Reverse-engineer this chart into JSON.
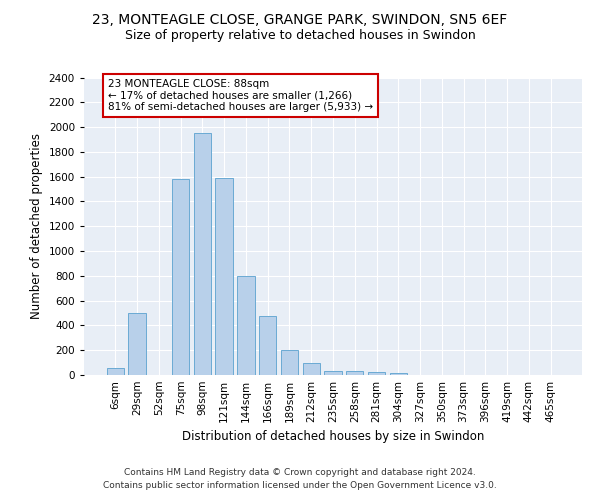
{
  "title_line1": "23, MONTEAGLE CLOSE, GRANGE PARK, SWINDON, SN5 6EF",
  "title_line2": "Size of property relative to detached houses in Swindon",
  "xlabel": "Distribution of detached houses by size in Swindon",
  "ylabel": "Number of detached properties",
  "footer_line1": "Contains HM Land Registry data © Crown copyright and database right 2024.",
  "footer_line2": "Contains public sector information licensed under the Open Government Licence v3.0.",
  "bar_labels": [
    "6sqm",
    "29sqm",
    "52sqm",
    "75sqm",
    "98sqm",
    "121sqm",
    "144sqm",
    "166sqm",
    "189sqm",
    "212sqm",
    "235sqm",
    "258sqm",
    "281sqm",
    "304sqm",
    "327sqm",
    "350sqm",
    "373sqm",
    "396sqm",
    "419sqm",
    "442sqm",
    "465sqm"
  ],
  "bar_values": [
    60,
    500,
    0,
    1580,
    1950,
    1590,
    800,
    480,
    200,
    95,
    35,
    30,
    25,
    20,
    0,
    0,
    0,
    0,
    0,
    0,
    0
  ],
  "bar_color": "#b8d0ea",
  "bar_edge_color": "#6aaad4",
  "background_color": "#e8eef6",
  "annotation_text": "23 MONTEAGLE CLOSE: 88sqm\n← 17% of detached houses are smaller (1,266)\n81% of semi-detached houses are larger (5,933) →",
  "annotation_box_color": "#ffffff",
  "annotation_box_edge_color": "#cc0000",
  "ylim": [
    0,
    2400
  ],
  "yticks": [
    0,
    200,
    400,
    600,
    800,
    1000,
    1200,
    1400,
    1600,
    1800,
    2000,
    2200,
    2400
  ],
  "title_fontsize": 10,
  "subtitle_fontsize": 9,
  "axis_label_fontsize": 8.5,
  "tick_fontsize": 7.5,
  "annotation_fontsize": 7.5,
  "footer_fontsize": 6.5
}
